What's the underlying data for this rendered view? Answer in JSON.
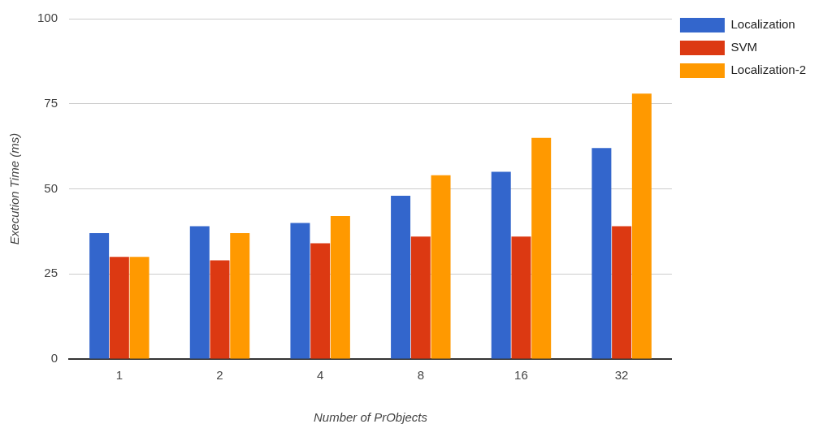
{
  "chart_data": {
    "type": "bar",
    "xlabel": "Number of PrObjects",
    "ylabel": "Execution Time (ms)",
    "categories": [
      "1",
      "2",
      "4",
      "8",
      "16",
      "32"
    ],
    "series": [
      {
        "name": "Localization",
        "color": "#3366cc",
        "values": [
          37,
          39,
          40,
          48,
          55,
          62
        ]
      },
      {
        "name": "SVM",
        "color": "#dc3912",
        "values": [
          30,
          29,
          34,
          36,
          36,
          39
        ]
      },
      {
        "name": "Localization-2",
        "color": "#ff9900",
        "values": [
          30,
          37,
          42,
          54,
          65,
          78
        ]
      }
    ],
    "ylim": [
      0,
      100
    ],
    "yticks": [
      0,
      25,
      50,
      75,
      100
    ],
    "grid": "y",
    "legend": "top right"
  }
}
